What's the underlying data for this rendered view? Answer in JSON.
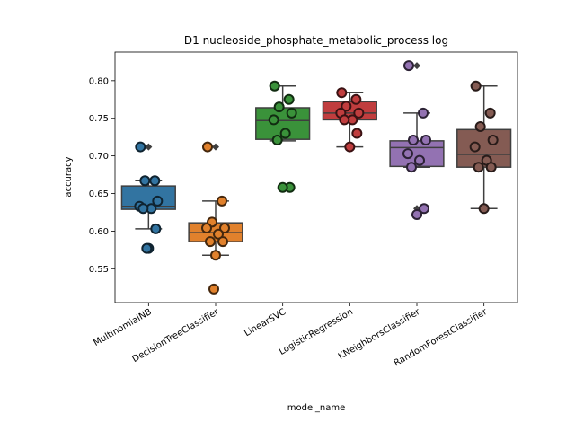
{
  "chart_data": {
    "type": "box",
    "title": "D1 nucleoside_phosphate_metabolic_process log",
    "xlabel": "model_name",
    "ylabel": "accuracy",
    "ylim": [
      0.505,
      0.838
    ],
    "yticks": [
      "0.55",
      "0.60",
      "0.65",
      "0.70",
      "0.75",
      "0.80"
    ],
    "grid": false,
    "categories": [
      "MultinomialNB",
      "DecisionTreeClassifier",
      "LinearSVC",
      "LogisticRegression",
      "KNeighborsClassifier",
      "RandomForestClassifier"
    ],
    "series": [
      {
        "category": "MultinomialNB",
        "color": "#3274a1",
        "box": {
          "whisker_low": 0.603,
          "q1": 0.629,
          "median": 0.633,
          "q3": 0.66,
          "whisker_high": 0.667
        },
        "outliers": [
          0.712,
          0.577
        ],
        "points": [
          0.712,
          0.667,
          0.667,
          0.64,
          0.633,
          0.63,
          0.63,
          0.603,
          0.577,
          0.577
        ]
      },
      {
        "category": "DecisionTreeClassifier",
        "color": "#e1812c",
        "box": {
          "whisker_low": 0.568,
          "q1": 0.586,
          "median": 0.598,
          "q3": 0.611,
          "whisker_high": 0.64
        },
        "outliers": [
          0.712,
          0.523
        ],
        "points": [
          0.712,
          0.64,
          0.612,
          0.604,
          0.604,
          0.596,
          0.586,
          0.586,
          0.568,
          0.523
        ]
      },
      {
        "category": "LinearSVC",
        "color": "#3a923a",
        "box": {
          "whisker_low": 0.72,
          "q1": 0.722,
          "median": 0.747,
          "q3": 0.764,
          "whisker_high": 0.793
        },
        "outliers": [
          0.658
        ],
        "points": [
          0.793,
          0.775,
          0.765,
          0.757,
          0.748,
          0.73,
          0.721,
          0.658,
          0.658
        ]
      },
      {
        "category": "LogisticRegression",
        "color": "#c03d3e",
        "box": {
          "whisker_low": 0.712,
          "q1": 0.748,
          "median": 0.757,
          "q3": 0.772,
          "whisker_high": 0.784
        },
        "outliers": [],
        "points": [
          0.784,
          0.775,
          0.766,
          0.757,
          0.757,
          0.748,
          0.748,
          0.73,
          0.712
        ]
      },
      {
        "category": "KNeighborsClassifier",
        "color": "#9372b2",
        "box": {
          "whisker_low": 0.685,
          "q1": 0.686,
          "median": 0.711,
          "q3": 0.72,
          "whisker_high": 0.757
        },
        "outliers": [
          0.82,
          0.63,
          0.622
        ],
        "points": [
          0.82,
          0.757,
          0.721,
          0.721,
          0.703,
          0.694,
          0.685,
          0.63,
          0.622
        ]
      },
      {
        "category": "RandomForestClassifier",
        "color": "#845b53",
        "box": {
          "whisker_low": 0.63,
          "q1": 0.685,
          "median": 0.702,
          "q3": 0.735,
          "whisker_high": 0.793
        },
        "outliers": [],
        "points": [
          0.793,
          0.757,
          0.739,
          0.721,
          0.712,
          0.694,
          0.685,
          0.685,
          0.63
        ]
      }
    ]
  }
}
